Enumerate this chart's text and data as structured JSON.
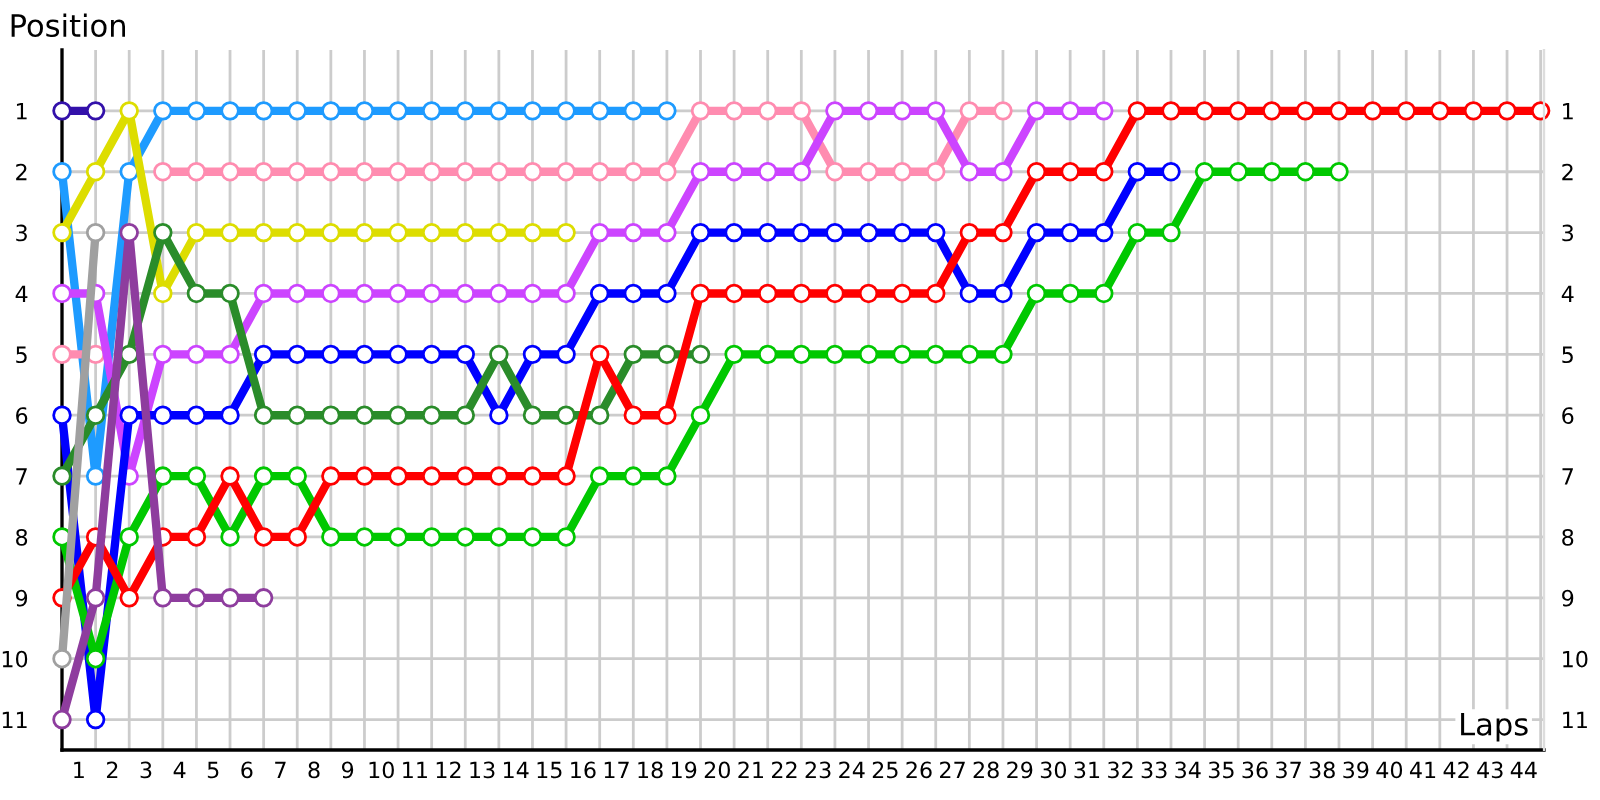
{
  "chart_data": {
    "type": "line",
    "xlabel": "Laps",
    "ylabel": "Position",
    "x": [
      0,
      1,
      2,
      3,
      4,
      5,
      6,
      7,
      8,
      9,
      10,
      11,
      12,
      13,
      14,
      15,
      16,
      17,
      18,
      19,
      20,
      21,
      22,
      23,
      24,
      25,
      26,
      27,
      28,
      29,
      30,
      31,
      32,
      33,
      34,
      35,
      36,
      37,
      38,
      39,
      40,
      41,
      42,
      43,
      44
    ],
    "xlim": [
      0,
      44.1
    ],
    "xticks": [
      {
        "value": 0.5,
        "label": "1"
      },
      {
        "value": 1.5,
        "label": "2"
      },
      {
        "value": 2.5,
        "label": "3"
      },
      {
        "value": 3.5,
        "label": "4"
      },
      {
        "value": 4.5,
        "label": "5"
      },
      {
        "value": 5.5,
        "label": "6"
      },
      {
        "value": 6.5,
        "label": "7"
      },
      {
        "value": 7.5,
        "label": "8"
      },
      {
        "value": 8.5,
        "label": "9"
      },
      {
        "value": 9.5,
        "label": "10"
      },
      {
        "value": 10.5,
        "label": "11"
      },
      {
        "value": 11.5,
        "label": "12"
      },
      {
        "value": 12.5,
        "label": "13"
      },
      {
        "value": 13.5,
        "label": "14"
      },
      {
        "value": 14.5,
        "label": "15"
      },
      {
        "value": 15.5,
        "label": "16"
      },
      {
        "value": 16.5,
        "label": "17"
      },
      {
        "value": 17.5,
        "label": "18"
      },
      {
        "value": 18.5,
        "label": "19"
      },
      {
        "value": 19.5,
        "label": "20"
      },
      {
        "value": 20.5,
        "label": "21"
      },
      {
        "value": 21.5,
        "label": "22"
      },
      {
        "value": 22.5,
        "label": "23"
      },
      {
        "value": 23.5,
        "label": "24"
      },
      {
        "value": 24.5,
        "label": "25"
      },
      {
        "value": 25.5,
        "label": "26"
      },
      {
        "value": 26.5,
        "label": "27"
      },
      {
        "value": 27.5,
        "label": "28"
      },
      {
        "value": 28.5,
        "label": "29"
      },
      {
        "value": 29.5,
        "label": "30"
      },
      {
        "value": 30.5,
        "label": "31"
      },
      {
        "value": 31.5,
        "label": "32"
      },
      {
        "value": 32.5,
        "label": "33"
      },
      {
        "value": 33.5,
        "label": "34"
      },
      {
        "value": 34.5,
        "label": "35"
      },
      {
        "value": 35.5,
        "label": "36"
      },
      {
        "value": 36.5,
        "label": "37"
      },
      {
        "value": 37.5,
        "label": "38"
      },
      {
        "value": 38.5,
        "label": "39"
      },
      {
        "value": 39.5,
        "label": "40"
      },
      {
        "value": 40.5,
        "label": "41"
      },
      {
        "value": 41.5,
        "label": "42"
      },
      {
        "value": 42.5,
        "label": "43"
      },
      {
        "value": 43.5,
        "label": "44"
      },
      {
        "value": 1,
        "label": null
      },
      {
        "value": 2,
        "label": null
      },
      {
        "value": 3,
        "label": null
      },
      {
        "value": 4,
        "label": null
      },
      {
        "value": 5,
        "label": null
      },
      {
        "value": 6,
        "label": null
      },
      {
        "value": 7,
        "label": null
      },
      {
        "value": 8,
        "label": null
      },
      {
        "value": 9,
        "label": null
      },
      {
        "value": 10,
        "label": null
      },
      {
        "value": 11,
        "label": null
      },
      {
        "value": 12,
        "label": null
      },
      {
        "value": 13,
        "label": null
      },
      {
        "value": 14,
        "label": null
      },
      {
        "value": 15,
        "label": null
      },
      {
        "value": 16,
        "label": null
      },
      {
        "value": 17,
        "label": null
      },
      {
        "value": 18,
        "label": null
      },
      {
        "value": 19,
        "label": null
      },
      {
        "value": 20,
        "label": null
      },
      {
        "value": 21,
        "label": null
      },
      {
        "value": 22,
        "label": null
      },
      {
        "value": 23,
        "label": null
      },
      {
        "value": 24,
        "label": null
      },
      {
        "value": 25,
        "label": null
      },
      {
        "value": 26,
        "label": null
      },
      {
        "value": 27,
        "label": null
      },
      {
        "value": 28,
        "label": null
      },
      {
        "value": 29,
        "label": null
      },
      {
        "value": 30,
        "label": null
      },
      {
        "value": 31,
        "label": null
      },
      {
        "value": 32,
        "label": null
      },
      {
        "value": 33,
        "label": null
      },
      {
        "value": 34,
        "label": null
      },
      {
        "value": 35,
        "label": null
      },
      {
        "value": 36,
        "label": null
      },
      {
        "value": 37,
        "label": null
      },
      {
        "value": 38,
        "label": null
      },
      {
        "value": 39,
        "label": null
      },
      {
        "value": 40,
        "label": null
      },
      {
        "value": 41,
        "label": null
      },
      {
        "value": 42,
        "label": null
      },
      {
        "value": 43,
        "label": null
      },
      {
        "value": 44,
        "label": null
      }
    ],
    "ylim": [
      11.5,
      0
    ],
    "yticks": [
      1,
      2,
      3,
      4,
      5,
      6,
      7,
      8,
      9,
      10,
      11
    ],
    "y2lim": [
      11.5,
      0
    ],
    "y2ticks": [
      1,
      2,
      3,
      4,
      5,
      6,
      7,
      8,
      9,
      10,
      11
    ],
    "grid": true,
    "marker": "circle",
    "line_style": "solid",
    "legend": false,
    "series": [
      {
        "color": "#3311aa",
        "values": [
          1,
          1,
          null,
          null,
          null,
          null,
          null,
          null,
          null,
          null,
          null,
          null,
          null,
          null,
          null,
          null,
          null,
          null,
          null,
          null,
          null,
          null,
          null,
          null,
          null,
          null,
          null,
          null,
          null,
          null,
          null,
          null,
          null,
          null,
          null,
          null,
          null,
          null,
          null,
          null,
          null,
          null,
          null,
          null,
          null
        ]
      },
      {
        "color": "#1e9bff",
        "values": [
          2,
          7,
          2,
          1,
          1,
          1,
          1,
          1,
          1,
          1,
          1,
          1,
          1,
          1,
          1,
          1,
          1,
          1,
          1,
          null,
          null,
          null,
          null,
          null,
          null,
          null,
          null,
          null,
          null,
          null,
          null,
          null,
          null,
          null,
          null,
          null,
          null,
          null,
          null,
          null,
          null,
          null,
          null,
          null,
          null
        ]
      },
      {
        "color": "#dddd00",
        "values": [
          3,
          2,
          1,
          4,
          3,
          3,
          3,
          3,
          3,
          3,
          3,
          3,
          3,
          3,
          3,
          3,
          null,
          null,
          null,
          null,
          null,
          null,
          null,
          null,
          null,
          null,
          null,
          null,
          null,
          null,
          null,
          null,
          null,
          null,
          null,
          null,
          null,
          null,
          null,
          null,
          null,
          null,
          null,
          null,
          null
        ]
      },
      {
        "color": "#ff8cb0",
        "values": [
          5,
          5,
          null,
          2,
          2,
          2,
          2,
          2,
          2,
          2,
          2,
          2,
          2,
          2,
          2,
          2,
          2,
          2,
          2,
          1,
          1,
          1,
          1,
          2,
          2,
          2,
          2,
          1,
          1,
          null,
          null,
          null,
          null,
          null,
          null,
          null,
          null,
          null,
          null,
          null,
          null,
          null,
          null,
          null,
          null
        ]
      },
      {
        "color": "#cc44ff",
        "values": [
          4,
          4,
          7,
          5,
          5,
          5,
          4,
          4,
          4,
          4,
          4,
          4,
          4,
          4,
          4,
          4,
          3,
          3,
          3,
          2,
          2,
          2,
          2,
          1,
          1,
          1,
          1,
          2,
          2,
          1,
          1,
          1,
          null,
          null,
          null,
          null,
          null,
          null,
          null,
          null,
          null,
          null,
          null,
          null,
          null
        ]
      },
      {
        "color": "#0000ff",
        "values": [
          6,
          11,
          6,
          6,
          6,
          6,
          5,
          5,
          5,
          5,
          5,
          5,
          5,
          6,
          5,
          5,
          4,
          4,
          4,
          3,
          3,
          3,
          3,
          3,
          3,
          3,
          3,
          4,
          4,
          3,
          3,
          3,
          2,
          2,
          null,
          null,
          null,
          null,
          null,
          null,
          null,
          null,
          null,
          null,
          null
        ]
      },
      {
        "color": "#2a8c2a",
        "values": [
          7,
          6,
          5,
          3,
          4,
          4,
          6,
          6,
          6,
          6,
          6,
          6,
          6,
          5,
          6,
          6,
          6,
          5,
          5,
          5,
          null,
          null,
          null,
          null,
          null,
          null,
          null,
          null,
          null,
          null,
          null,
          null,
          null,
          null,
          null,
          null,
          null,
          null,
          null,
          null,
          null,
          null,
          null,
          null,
          null
        ]
      },
      {
        "color": "#00c800",
        "values": [
          8,
          10,
          8,
          7,
          7,
          8,
          7,
          7,
          8,
          8,
          8,
          8,
          8,
          8,
          8,
          8,
          7,
          7,
          7,
          6,
          5,
          5,
          5,
          5,
          5,
          5,
          5,
          5,
          5,
          4,
          4,
          4,
          3,
          3,
          2,
          2,
          2,
          2,
          2,
          null,
          null,
          null,
          null,
          null,
          null
        ]
      },
      {
        "color": "#ff0000",
        "values": [
          9,
          8,
          9,
          8,
          8,
          7,
          8,
          8,
          7,
          7,
          7,
          7,
          7,
          7,
          7,
          7,
          5,
          6,
          6,
          4,
          4,
          4,
          4,
          4,
          4,
          4,
          4,
          3,
          3,
          2,
          2,
          2,
          1,
          1,
          1,
          1,
          1,
          1,
          1,
          1,
          1,
          1,
          1,
          1,
          1
        ]
      },
      {
        "color": "#a0a0a0",
        "values": [
          10,
          3,
          null,
          null,
          null,
          null,
          null,
          null,
          null,
          null,
          null,
          null,
          null,
          null,
          null,
          null,
          null,
          null,
          null,
          null,
          null,
          null,
          null,
          null,
          null,
          null,
          null,
          null,
          null,
          null,
          null,
          null,
          null,
          null,
          null,
          null,
          null,
          null,
          null,
          null,
          null,
          null,
          null,
          null,
          null
        ]
      },
      {
        "color": "#8e3d9e",
        "values": [
          11,
          9,
          3,
          9,
          9,
          9,
          9,
          null,
          null,
          null,
          null,
          null,
          null,
          null,
          null,
          null,
          null,
          null,
          null,
          null,
          null,
          null,
          null,
          null,
          null,
          null,
          null,
          null,
          null,
          null,
          null,
          null,
          null,
          null,
          null,
          null,
          null,
          null,
          null,
          null,
          null,
          null,
          null,
          null,
          null
        ]
      }
    ]
  }
}
